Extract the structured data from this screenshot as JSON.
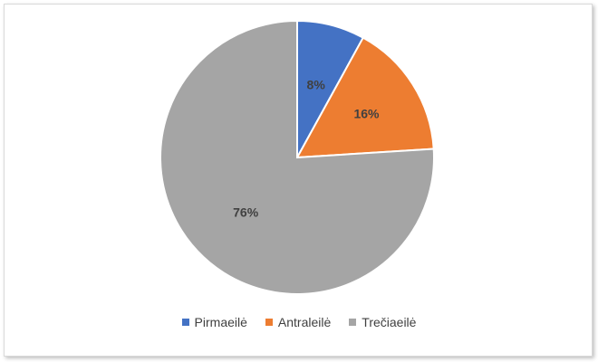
{
  "chart_data": {
    "type": "pie",
    "categories": [
      "Pirmaeilė",
      "Antraleilė",
      "Trečiaeilė"
    ],
    "values": [
      8,
      16,
      76
    ],
    "data_labels": [
      "8%",
      "16%",
      "76%"
    ],
    "colors": [
      "#4472c4",
      "#ed7d31",
      "#a5a5a5"
    ],
    "legend": "bottom"
  }
}
